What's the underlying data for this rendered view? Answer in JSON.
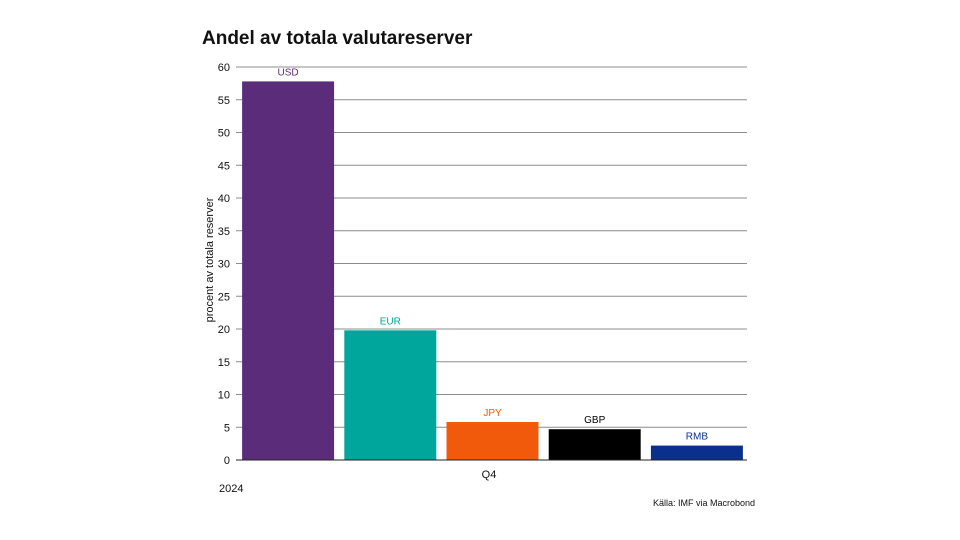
{
  "chart_title": "Andel av totala valutareserver",
  "source": "Källa: IMF via Macrobond",
  "chart_data": {
    "type": "bar",
    "title": "Andel av totala valutareserver",
    "ylabel": "procent av totala reserver",
    "xlabel": "",
    "period_label": "Q4",
    "year_label": "2024",
    "categories": [
      "USD",
      "EUR",
      "JPY",
      "GBP",
      "RMB"
    ],
    "values": [
      57.8,
      19.8,
      5.8,
      4.7,
      2.2
    ],
    "colors": [
      "#5B2C7A",
      "#00A59B",
      "#F05A0A",
      "#000000",
      "#0A2F8C"
    ],
    "label_colors": [
      "#5B2C7A",
      "#00A59B",
      "#F05A0A",
      "#000000",
      "#0A2F8C"
    ],
    "ylim": [
      0,
      60
    ],
    "yticks": [
      0,
      5,
      10,
      15,
      20,
      25,
      30,
      35,
      40,
      45,
      50,
      55,
      60
    ],
    "grid": true,
    "legend": "none"
  }
}
